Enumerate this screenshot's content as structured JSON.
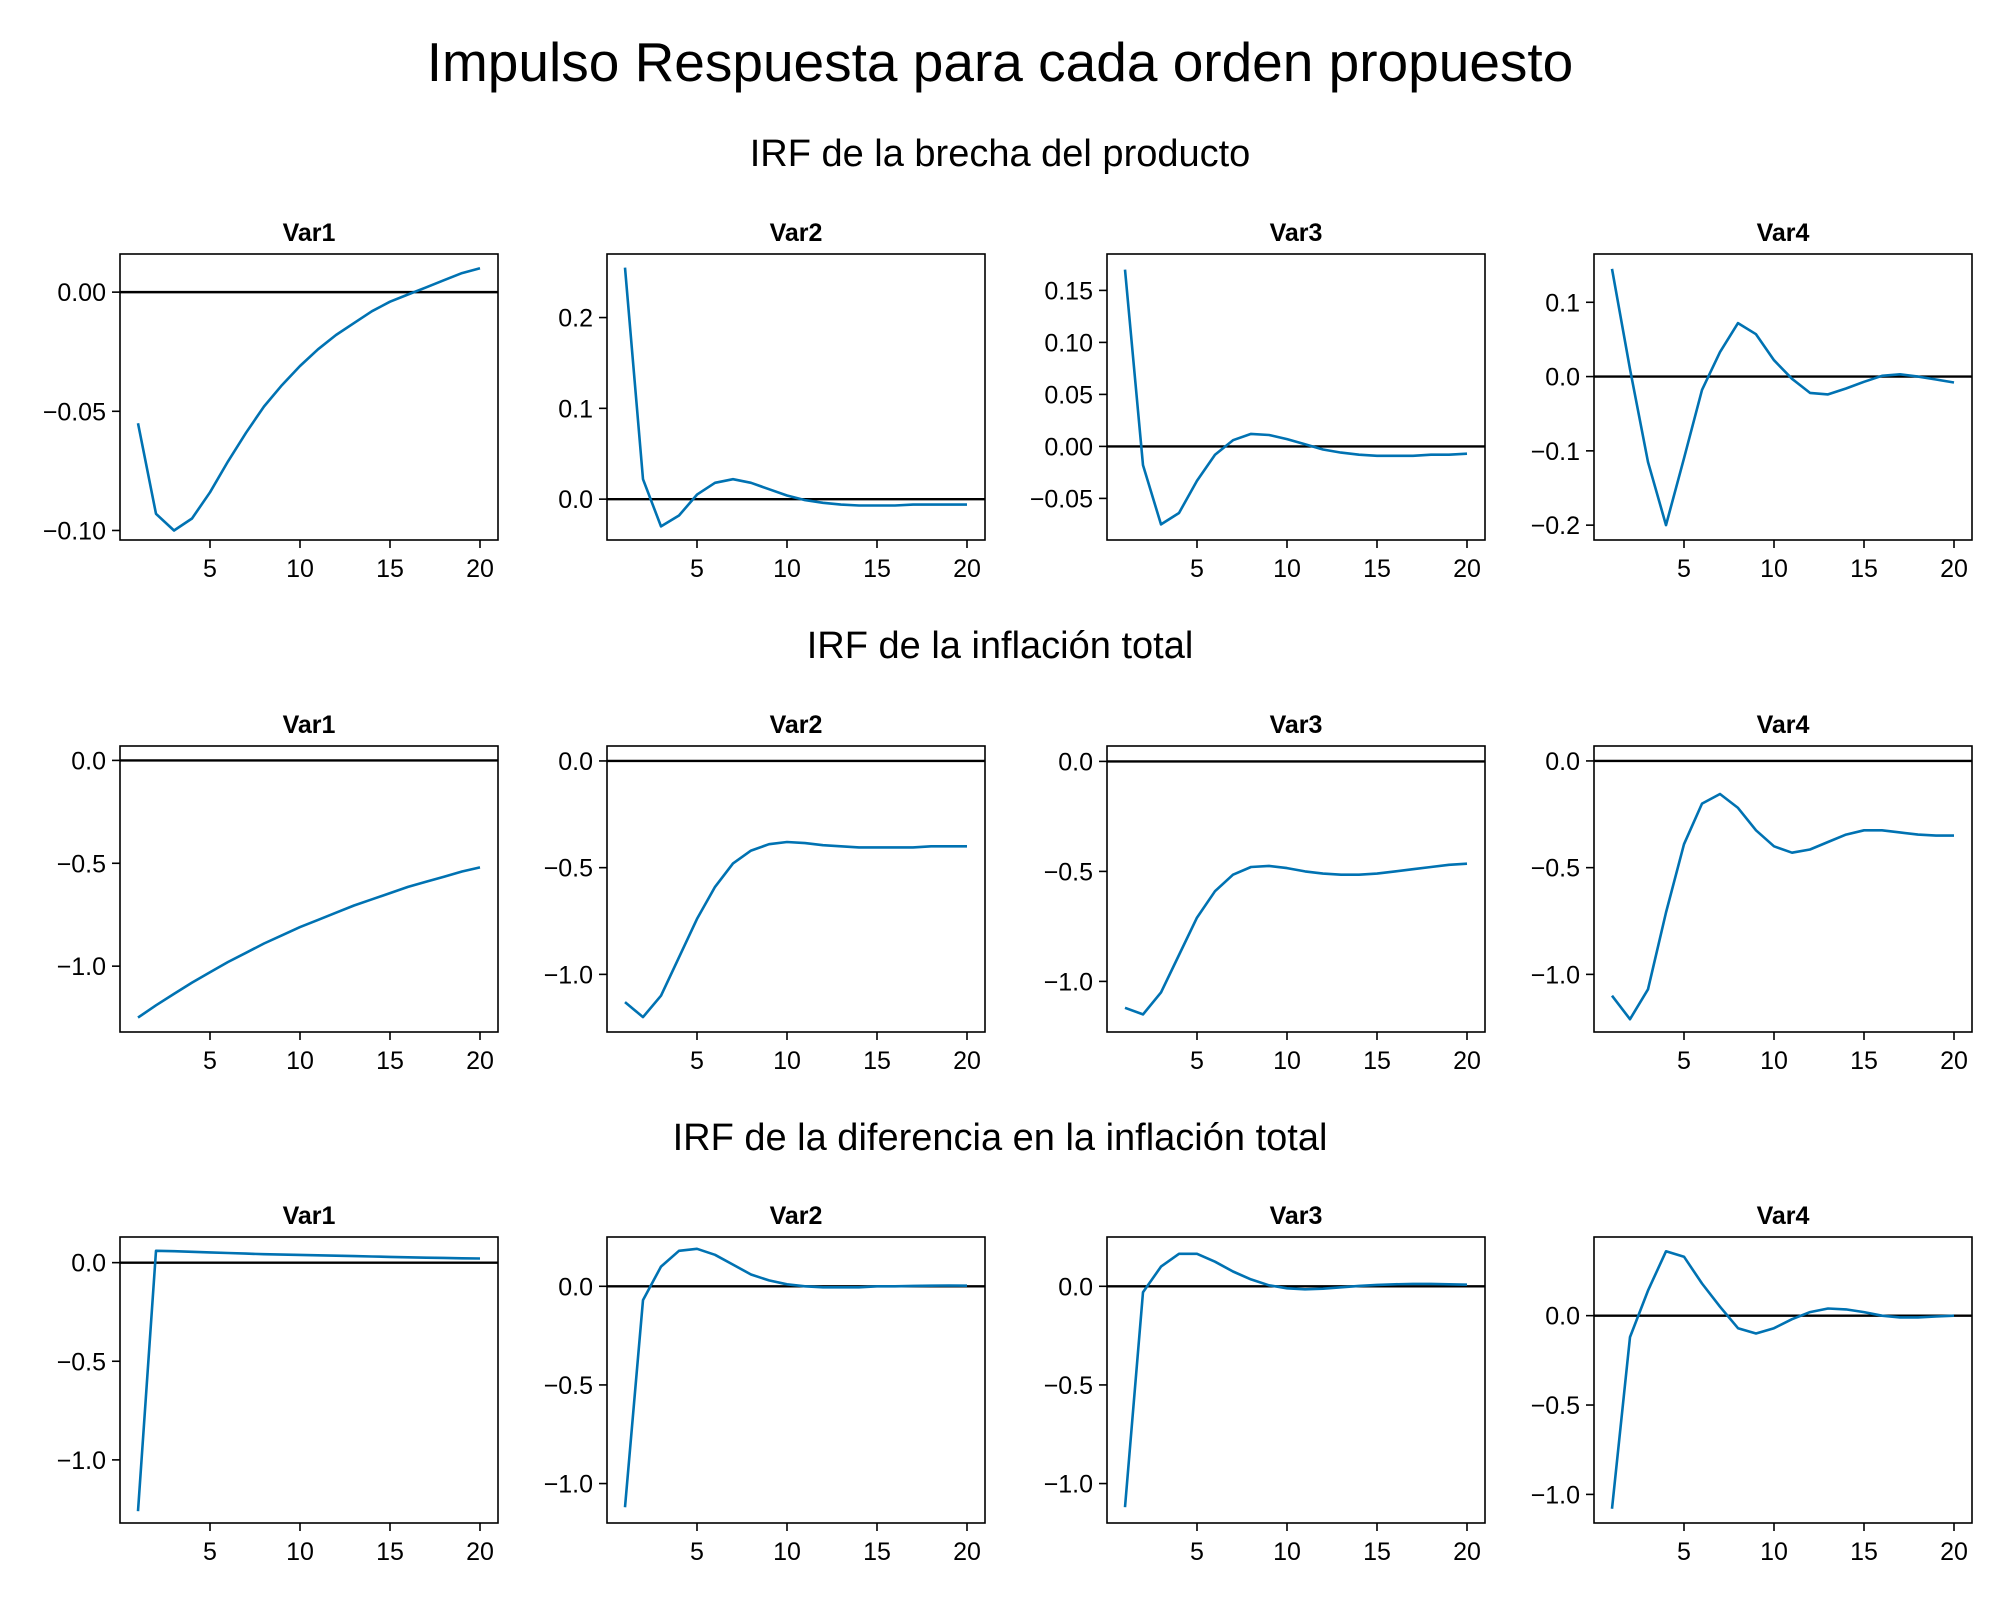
{
  "title": "Impulso Respuesta para cada orden propuesto",
  "row_titles": [
    "IRF de la brecha del producto",
    "IRF de la inflación total",
    "IRF de la diferencia en la inflación total"
  ],
  "colors": {
    "series": "#0072b2",
    "zero_line": "#000000",
    "axes": "#000000"
  },
  "chart_data": [
    {
      "type": "line",
      "row": 0,
      "title": "Var1",
      "xlim": [
        0,
        21
      ],
      "ylim": [
        -0.104,
        0.016
      ],
      "xticks": [
        5,
        10,
        15,
        20
      ],
      "xtick_labels": [
        "5",
        "10",
        "15",
        "20"
      ],
      "yticks": [
        -0.1,
        -0.05,
        0
      ],
      "ytick_labels": [
        "−0.10",
        "−0.05",
        "0.00"
      ],
      "grid": false,
      "hline": 0,
      "x": [
        1,
        2,
        3,
        4,
        5,
        6,
        7,
        8,
        9,
        10,
        11,
        12,
        13,
        14,
        15,
        16,
        17,
        18,
        19,
        20
      ],
      "y": [
        -0.055,
        -0.093,
        -0.1,
        -0.095,
        -0.084,
        -0.071,
        -0.059,
        -0.048,
        -0.039,
        -0.031,
        -0.024,
        -0.018,
        -0.013,
        -0.008,
        -0.004,
        -0.001,
        0.002,
        0.005,
        0.008,
        0.01
      ]
    },
    {
      "type": "line",
      "row": 0,
      "title": "Var2",
      "xlim": [
        0,
        21
      ],
      "ylim": [
        -0.045,
        0.27
      ],
      "xticks": [
        5,
        10,
        15,
        20
      ],
      "xtick_labels": [
        "5",
        "10",
        "15",
        "20"
      ],
      "yticks": [
        0,
        0.1,
        0.2
      ],
      "ytick_labels": [
        "0.0",
        "0.1",
        "0.2"
      ],
      "grid": false,
      "hline": 0,
      "x": [
        1,
        2,
        3,
        4,
        5,
        6,
        7,
        8,
        9,
        10,
        11,
        12,
        13,
        14,
        15,
        16,
        17,
        18,
        19,
        20
      ],
      "y": [
        0.255,
        0.022,
        -0.03,
        -0.018,
        0.005,
        0.018,
        0.022,
        0.018,
        0.011,
        0.004,
        -0.001,
        -0.004,
        -0.006,
        -0.007,
        -0.007,
        -0.007,
        -0.006,
        -0.006,
        -0.006,
        -0.006
      ]
    },
    {
      "type": "line",
      "row": 0,
      "title": "Var3",
      "xlim": [
        0,
        21
      ],
      "ylim": [
        -0.09,
        0.185
      ],
      "xticks": [
        5,
        10,
        15,
        20
      ],
      "xtick_labels": [
        "5",
        "10",
        "15",
        "20"
      ],
      "yticks": [
        -0.05,
        0,
        0.05,
        0.1,
        0.15
      ],
      "ytick_labels": [
        "−0.05",
        "0.00",
        "0.05",
        "0.10",
        "0.15"
      ],
      "grid": false,
      "hline": 0,
      "x": [
        1,
        2,
        3,
        4,
        5,
        6,
        7,
        8,
        9,
        10,
        11,
        12,
        13,
        14,
        15,
        16,
        17,
        18,
        19,
        20
      ],
      "y": [
        0.17,
        -0.018,
        -0.075,
        -0.064,
        -0.033,
        -0.008,
        0.006,
        0.012,
        0.011,
        0.007,
        0.002,
        -0.003,
        -0.006,
        -0.008,
        -0.009,
        -0.009,
        -0.009,
        -0.008,
        -0.008,
        -0.007
      ]
    },
    {
      "type": "line",
      "row": 0,
      "title": "Var4",
      "xlim": [
        0,
        21
      ],
      "ylim": [
        -0.22,
        0.165
      ],
      "xticks": [
        5,
        10,
        15,
        20
      ],
      "xtick_labels": [
        "5",
        "10",
        "15",
        "20"
      ],
      "yticks": [
        -0.2,
        -0.1,
        0,
        0.1
      ],
      "ytick_labels": [
        "−0.2",
        "−0.1",
        "0.0",
        "0.1"
      ],
      "grid": false,
      "hline": 0,
      "x": [
        1,
        2,
        3,
        4,
        5,
        6,
        7,
        8,
        9,
        10,
        11,
        12,
        13,
        14,
        15,
        16,
        17,
        18,
        19,
        20
      ],
      "y": [
        0.145,
        0.01,
        -0.115,
        -0.2,
        -0.11,
        -0.018,
        0.033,
        0.072,
        0.057,
        0.022,
        -0.003,
        -0.022,
        -0.024,
        -0.016,
        -0.007,
        0.001,
        0.003,
        0.0,
        -0.004,
        -0.008
      ]
    },
    {
      "type": "line",
      "row": 1,
      "title": "Var1",
      "xlim": [
        0,
        21
      ],
      "ylim": [
        -1.32,
        0.07
      ],
      "xticks": [
        5,
        10,
        15,
        20
      ],
      "xtick_labels": [
        "5",
        "10",
        "15",
        "20"
      ],
      "yticks": [
        -1.0,
        -0.5,
        0
      ],
      "ytick_labels": [
        "−1.0",
        "−0.5",
        "0.0"
      ],
      "grid": false,
      "hline": 0,
      "x": [
        1,
        2,
        3,
        4,
        5,
        6,
        7,
        8,
        9,
        10,
        11,
        12,
        13,
        14,
        15,
        16,
        17,
        18,
        19,
        20
      ],
      "y": [
        -1.25,
        -1.19,
        -1.135,
        -1.08,
        -1.03,
        -0.98,
        -0.935,
        -0.89,
        -0.85,
        -0.81,
        -0.775,
        -0.74,
        -0.705,
        -0.675,
        -0.645,
        -0.615,
        -0.59,
        -0.565,
        -0.54,
        -0.52
      ]
    },
    {
      "type": "line",
      "row": 1,
      "title": "Var2",
      "xlim": [
        0,
        21
      ],
      "ylim": [
        -1.27,
        0.07
      ],
      "xticks": [
        5,
        10,
        15,
        20
      ],
      "xtick_labels": [
        "5",
        "10",
        "15",
        "20"
      ],
      "yticks": [
        -1.0,
        -0.5,
        0
      ],
      "ytick_labels": [
        "−1.0",
        "−0.5",
        "0.0"
      ],
      "grid": false,
      "hline": 0,
      "x": [
        1,
        2,
        3,
        4,
        5,
        6,
        7,
        8,
        9,
        10,
        11,
        12,
        13,
        14,
        15,
        16,
        17,
        18,
        19,
        20
      ],
      "y": [
        -1.13,
        -1.2,
        -1.1,
        -0.92,
        -0.74,
        -0.59,
        -0.48,
        -0.42,
        -0.39,
        -0.38,
        -0.385,
        -0.395,
        -0.4,
        -0.405,
        -0.405,
        -0.405,
        -0.405,
        -0.4,
        -0.4,
        -0.4
      ]
    },
    {
      "type": "line",
      "row": 1,
      "title": "Var3",
      "xlim": [
        0,
        21
      ],
      "ylim": [
        -1.23,
        0.07
      ],
      "xticks": [
        5,
        10,
        15,
        20
      ],
      "xtick_labels": [
        "5",
        "10",
        "15",
        "20"
      ],
      "yticks": [
        -1.0,
        -0.5,
        0
      ],
      "ytick_labels": [
        "−1.0",
        "−0.5",
        "0.0"
      ],
      "grid": false,
      "hline": 0,
      "x": [
        1,
        2,
        3,
        4,
        5,
        6,
        7,
        8,
        9,
        10,
        11,
        12,
        13,
        14,
        15,
        16,
        17,
        18,
        19,
        20
      ],
      "y": [
        -1.12,
        -1.15,
        -1.05,
        -0.88,
        -0.71,
        -0.59,
        -0.515,
        -0.48,
        -0.475,
        -0.485,
        -0.5,
        -0.51,
        -0.515,
        -0.515,
        -0.51,
        -0.5,
        -0.49,
        -0.48,
        -0.47,
        -0.465
      ]
    },
    {
      "type": "line",
      "row": 1,
      "title": "Var4",
      "xlim": [
        0,
        21
      ],
      "ylim": [
        -1.27,
        0.07
      ],
      "xticks": [
        5,
        10,
        15,
        20
      ],
      "xtick_labels": [
        "5",
        "10",
        "15",
        "20"
      ],
      "yticks": [
        -1.0,
        -0.5,
        0
      ],
      "ytick_labels": [
        "−1.0",
        "−0.5",
        "0.0"
      ],
      "grid": false,
      "hline": 0,
      "x": [
        1,
        2,
        3,
        4,
        5,
        6,
        7,
        8,
        9,
        10,
        11,
        12,
        13,
        14,
        15,
        16,
        17,
        18,
        19,
        20
      ],
      "y": [
        -1.1,
        -1.21,
        -1.07,
        -0.71,
        -0.39,
        -0.2,
        -0.155,
        -0.22,
        -0.325,
        -0.4,
        -0.43,
        -0.415,
        -0.38,
        -0.345,
        -0.325,
        -0.325,
        -0.335,
        -0.345,
        -0.35,
        -0.35
      ]
    },
    {
      "type": "line",
      "row": 2,
      "title": "Var1",
      "xlim": [
        0,
        21
      ],
      "ylim": [
        -1.32,
        0.13
      ],
      "xticks": [
        5,
        10,
        15,
        20
      ],
      "xtick_labels": [
        "5",
        "10",
        "15",
        "20"
      ],
      "yticks": [
        -1.0,
        -0.5,
        0
      ],
      "ytick_labels": [
        "−1.0",
        "−0.5",
        "0.0"
      ],
      "grid": false,
      "hline": 0,
      "x": [
        1,
        2,
        3,
        4,
        5,
        6,
        7,
        8,
        9,
        10,
        11,
        12,
        13,
        14,
        15,
        16,
        17,
        18,
        19,
        20
      ],
      "y": [
        -1.26,
        0.06,
        0.058,
        0.055,
        0.052,
        0.049,
        0.046,
        0.043,
        0.041,
        0.039,
        0.037,
        0.035,
        0.033,
        0.031,
        0.029,
        0.027,
        0.025,
        0.024,
        0.022,
        0.021
      ]
    },
    {
      "type": "line",
      "row": 2,
      "title": "Var2",
      "xlim": [
        0,
        21
      ],
      "ylim": [
        -1.2,
        0.25
      ],
      "xticks": [
        5,
        10,
        15,
        20
      ],
      "xtick_labels": [
        "5",
        "10",
        "15",
        "20"
      ],
      "yticks": [
        -1.0,
        -0.5,
        0
      ],
      "ytick_labels": [
        "−1.0",
        "−0.5",
        "0.0"
      ],
      "grid": false,
      "hline": 0,
      "x": [
        1,
        2,
        3,
        4,
        5,
        6,
        7,
        8,
        9,
        10,
        11,
        12,
        13,
        14,
        15,
        16,
        17,
        18,
        19,
        20
      ],
      "y": [
        -1.12,
        -0.07,
        0.1,
        0.18,
        0.19,
        0.16,
        0.11,
        0.06,
        0.03,
        0.01,
        0.0,
        -0.005,
        -0.005,
        -0.005,
        0.0,
        0.0,
        0.002,
        0.003,
        0.004,
        0.003
      ]
    },
    {
      "type": "line",
      "row": 2,
      "title": "Var3",
      "xlim": [
        0,
        21
      ],
      "ylim": [
        -1.2,
        0.25
      ],
      "xticks": [
        5,
        10,
        15,
        20
      ],
      "xtick_labels": [
        "5",
        "10",
        "15",
        "20"
      ],
      "yticks": [
        -1.0,
        -0.5,
        0
      ],
      "ytick_labels": [
        "−1.0",
        "−0.5",
        "0.0"
      ],
      "grid": false,
      "hline": 0,
      "x": [
        1,
        2,
        3,
        4,
        5,
        6,
        7,
        8,
        9,
        10,
        11,
        12,
        13,
        14,
        15,
        16,
        17,
        18,
        19,
        20
      ],
      "y": [
        -1.12,
        -0.03,
        0.1,
        0.165,
        0.165,
        0.125,
        0.075,
        0.035,
        0.005,
        -0.01,
        -0.015,
        -0.012,
        -0.005,
        0.002,
        0.007,
        0.01,
        0.012,
        0.012,
        0.01,
        0.008
      ]
    },
    {
      "type": "line",
      "row": 2,
      "title": "Var4",
      "xlim": [
        0,
        21
      ],
      "ylim": [
        -1.16,
        0.44
      ],
      "xticks": [
        5,
        10,
        15,
        20
      ],
      "xtick_labels": [
        "5",
        "10",
        "15",
        "20"
      ],
      "yticks": [
        -1.0,
        -0.5,
        0
      ],
      "ytick_labels": [
        "−1.0",
        "−0.5",
        "0.0"
      ],
      "grid": false,
      "hline": 0,
      "x": [
        1,
        2,
        3,
        4,
        5,
        6,
        7,
        8,
        9,
        10,
        11,
        12,
        13,
        14,
        15,
        16,
        17,
        18,
        19,
        20
      ],
      "y": [
        -1.08,
        -0.12,
        0.14,
        0.36,
        0.33,
        0.18,
        0.05,
        -0.07,
        -0.1,
        -0.07,
        -0.02,
        0.02,
        0.04,
        0.035,
        0.02,
        0.0,
        -0.01,
        -0.01,
        -0.005,
        0.0
      ]
    }
  ]
}
